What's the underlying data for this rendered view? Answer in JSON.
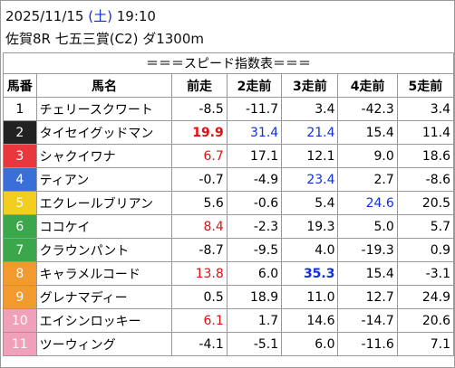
{
  "header": {
    "date": "2025/11/15",
    "weekday": "(土)",
    "time": "19:10",
    "race": "佐賀8R 七五三賞(C2) ダ1300m"
  },
  "table": {
    "title": "＝＝＝スピード指数表＝＝＝",
    "columns": [
      "馬番",
      "馬名",
      "前走",
      "2走前",
      "3走前",
      "4走前",
      "5走前"
    ],
    "rows": [
      {
        "number": "1",
        "name": "チェリースクワート",
        "frame_color": "#ffffff",
        "frame_text": "#000000",
        "values": [
          "-8.5",
          "-11.7",
          "3.4",
          "-42.3",
          "3.4"
        ],
        "styles": [
          "plain",
          "plain",
          "plain",
          "plain",
          "plain"
        ]
      },
      {
        "number": "2",
        "name": "タイセイグッドマン",
        "frame_color": "#222222",
        "frame_text": "#ffffff",
        "values": [
          "19.9",
          "31.4",
          "21.4",
          "15.4",
          "11.4"
        ],
        "styles": [
          "red-bold",
          "blue",
          "blue",
          "plain",
          "plain"
        ]
      },
      {
        "number": "3",
        "name": "シャクイワナ",
        "frame_color": "#e8383d",
        "frame_text": "#ffffff",
        "values": [
          "6.7",
          "17.1",
          "12.1",
          "9.0",
          "18.6"
        ],
        "styles": [
          "red",
          "plain",
          "plain",
          "plain",
          "plain"
        ]
      },
      {
        "number": "4",
        "name": "ティアン",
        "frame_color": "#3b6fd8",
        "frame_text": "#ffffff",
        "values": [
          "-0.7",
          "-4.9",
          "23.4",
          "2.7",
          "-8.6"
        ],
        "styles": [
          "plain",
          "plain",
          "blue",
          "plain",
          "plain"
        ]
      },
      {
        "number": "5",
        "name": "エクレールブリアン",
        "frame_color": "#f2cf1f",
        "frame_text": "#ffffff",
        "values": [
          "5.6",
          "-0.6",
          "5.4",
          "24.6",
          "20.5"
        ],
        "styles": [
          "plain",
          "plain",
          "plain",
          "blue",
          "plain"
        ]
      },
      {
        "number": "6",
        "name": "ココケイ",
        "frame_color": "#3aa84a",
        "frame_text": "#ffffff",
        "values": [
          "8.4",
          "-2.3",
          "19.3",
          "5.0",
          "5.7"
        ],
        "styles": [
          "red",
          "plain",
          "plain",
          "plain",
          "plain"
        ]
      },
      {
        "number": "7",
        "name": "クラウンパント",
        "frame_color": "#3aa84a",
        "frame_text": "#ffffff",
        "values": [
          "-8.7",
          "-9.5",
          "4.0",
          "-19.3",
          "0.9"
        ],
        "styles": [
          "plain",
          "plain",
          "plain",
          "plain",
          "plain"
        ]
      },
      {
        "number": "8",
        "name": "キャラメルコード",
        "frame_color": "#f39a2e",
        "frame_text": "#ffffff",
        "values": [
          "13.8",
          "6.0",
          "35.3",
          "15.4",
          "-3.1"
        ],
        "styles": [
          "red",
          "plain",
          "blue-bold",
          "plain",
          "plain"
        ]
      },
      {
        "number": "9",
        "name": "グレナマディー",
        "frame_color": "#f39a2e",
        "frame_text": "#ffffff",
        "values": [
          "0.5",
          "18.9",
          "11.0",
          "12.7",
          "24.9"
        ],
        "styles": [
          "plain",
          "plain",
          "plain",
          "plain",
          "plain"
        ]
      },
      {
        "number": "10",
        "name": "エイシンロッキー",
        "frame_color": "#f0a0b8",
        "frame_text": "#ffffff",
        "values": [
          "6.1",
          "1.7",
          "14.6",
          "-14.7",
          "20.6"
        ],
        "styles": [
          "red",
          "plain",
          "plain",
          "plain",
          "plain"
        ]
      },
      {
        "number": "11",
        "name": "ツーウィング",
        "frame_color": "#f0a0b8",
        "frame_text": "#ffffff",
        "values": [
          "-4.1",
          "-5.1",
          "6.0",
          "-11.6",
          "7.1"
        ],
        "styles": [
          "plain",
          "plain",
          "plain",
          "plain",
          "plain"
        ]
      }
    ]
  }
}
